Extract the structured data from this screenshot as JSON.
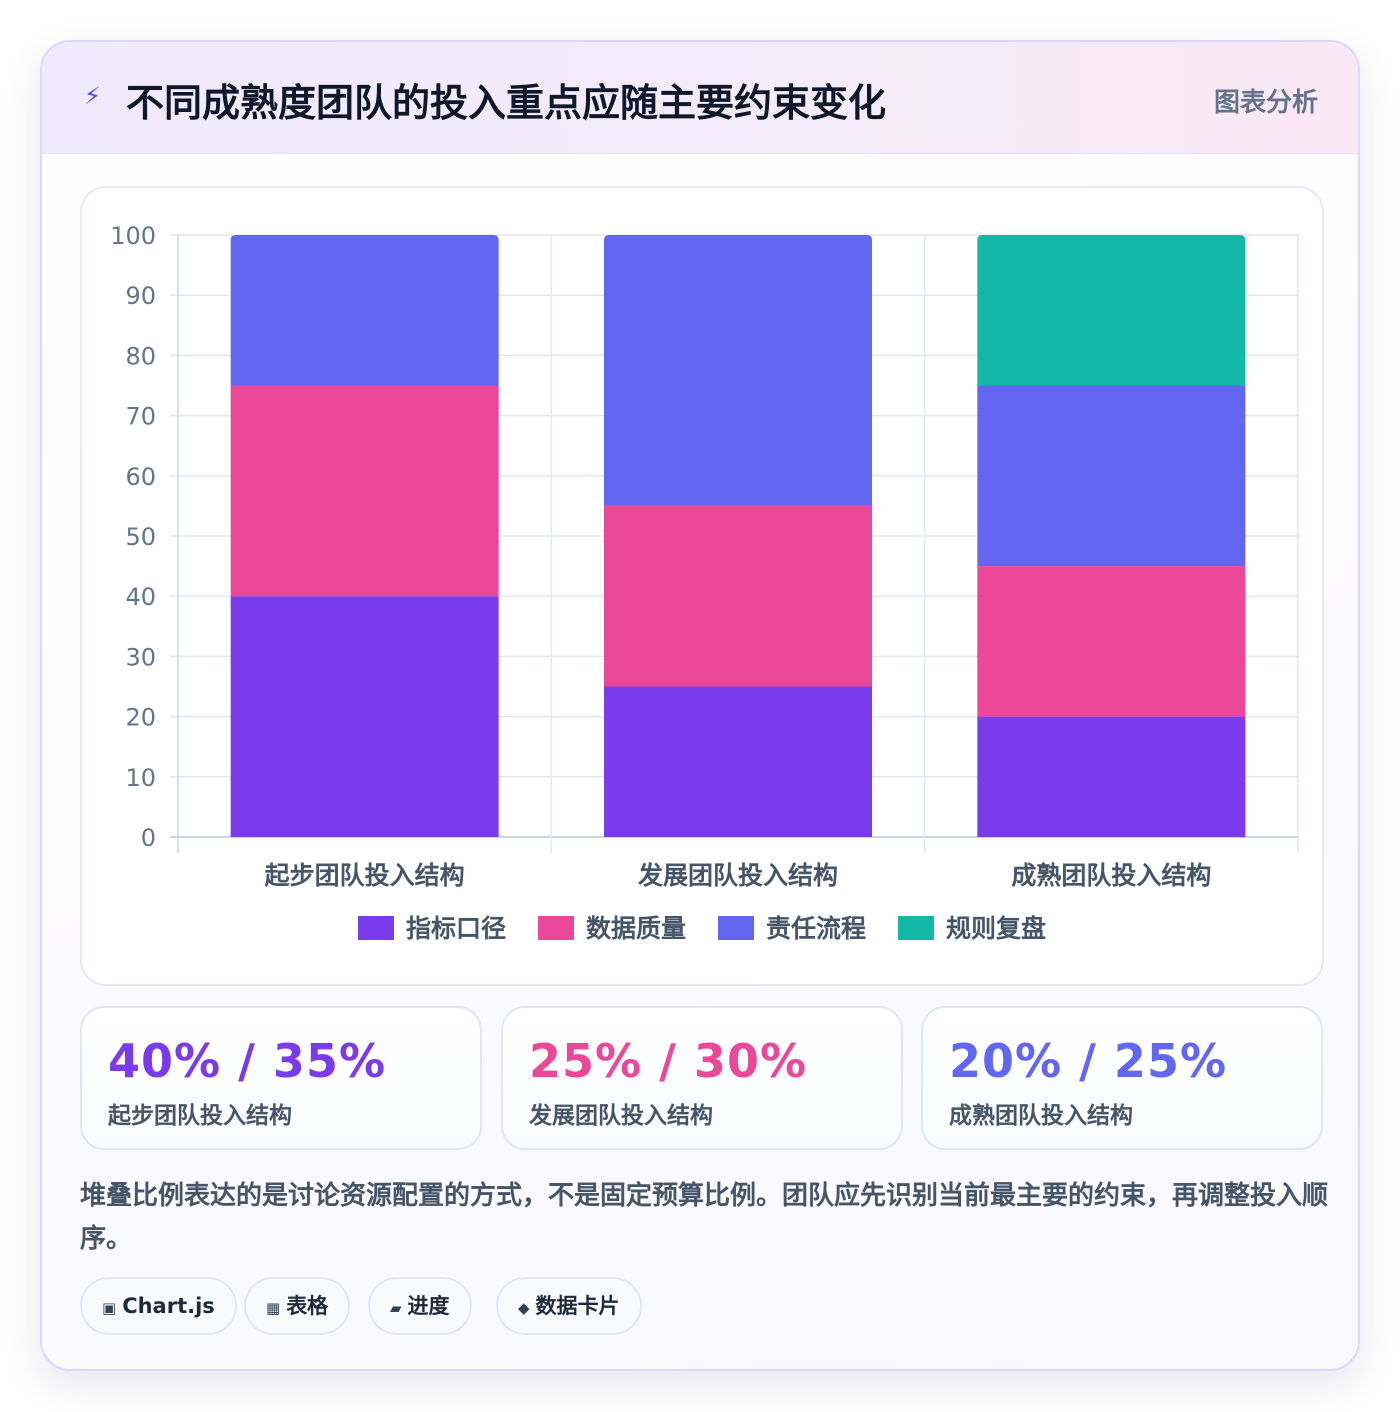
{
  "header": {
    "icon": "lightning-icon",
    "icon_glyph": "⚡",
    "title": "不同成熟度团队的投入重点应随主要约束变化",
    "tag": "图表分析"
  },
  "chart_data": {
    "type": "bar",
    "stacked": true,
    "categories": [
      "起步团队投入结构",
      "发展团队投入结构",
      "成熟团队投入结构"
    ],
    "series": [
      {
        "name": "指标口径",
        "values": [
          40,
          25,
          20
        ],
        "color": "#7c3aed"
      },
      {
        "name": "数据质量",
        "values": [
          35,
          30,
          25
        ],
        "color": "#ec4899"
      },
      {
        "name": "责任流程",
        "values": [
          25,
          45,
          30
        ],
        "color": "#6366f1"
      },
      {
        "name": "规则复盘",
        "values": [
          0,
          0,
          25
        ],
        "color": "#14b8a6"
      }
    ],
    "ylim": [
      0,
      100
    ],
    "yticks": [
      0,
      10,
      20,
      30,
      40,
      50,
      60,
      70,
      80,
      90,
      100
    ],
    "grid": true,
    "legend": "bottom"
  },
  "stats": [
    {
      "value": "40% / 35%",
      "label": "起步团队投入结构",
      "color": "#7c3aed"
    },
    {
      "value": "25% / 30%",
      "label": "发展团队投入结构",
      "color": "#ec4899"
    },
    {
      "value": "20% / 25%",
      "label": "成熟团队投入结构",
      "color": "#6366f1"
    }
  ],
  "note": "堆叠比例表达的是讨论资源配置的方式，不是固定预算比例。团队应先识别当前最主要的约束，再调整投入顺序。",
  "chips": [
    {
      "icon": "chart-icon",
      "glyph": "▣",
      "label": "Chart.js"
    },
    {
      "icon": "table-icon",
      "glyph": "▦",
      "label": "表格"
    },
    {
      "icon": "progress-icon",
      "glyph": "▰",
      "label": "进度"
    },
    {
      "icon": "data-card-icon",
      "glyph": "◆",
      "label": "数据卡片"
    }
  ]
}
